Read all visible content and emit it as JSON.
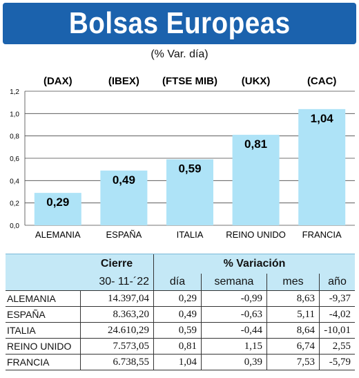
{
  "title": "Bolsas Europeas",
  "subtitle": "(% Var. día)",
  "chart_data": {
    "type": "bar",
    "categories": [
      "ALEMANIA",
      "ESPAÑA",
      "ITALIA",
      "REINO UNIDO",
      "FRANCIA"
    ],
    "indices": [
      "(DAX)",
      "(IBEX)",
      "(FTSE MIB)",
      "(UKX)",
      "(CAC)"
    ],
    "values": [
      0.29,
      0.49,
      0.59,
      0.81,
      1.04
    ],
    "value_labels": [
      "0,29",
      "0,49",
      "0,59",
      "0,81",
      "1,04"
    ],
    "ylim": [
      0,
      1.2
    ],
    "yticks": [
      "0,0",
      "0,2",
      "0,4",
      "0,6",
      "0,8",
      "1,0",
      "1,2"
    ],
    "bar_color": "#aee3f7",
    "grid": true
  },
  "table": {
    "group_cierre": "Cierre",
    "group_variacion": "% Variación",
    "date": "30- 11-´22",
    "col_dia": "día",
    "col_semana": "semana",
    "col_mes": "mes",
    "col_ano": "año",
    "rows": [
      {
        "country": "ALEMANIA",
        "close": "14.397,04",
        "dia": "0,29",
        "semana": "-0,99",
        "mes": "8,63",
        "ano": "-9,37"
      },
      {
        "country": "ESPAÑA",
        "close": "8.363,20",
        "dia": "0,49",
        "semana": "-0,63",
        "mes": "5,11",
        "ano": "-4,02"
      },
      {
        "country": "ITALIA",
        "close": "24.610,29",
        "dia": "0,59",
        "semana": "-0,44",
        "mes": "8,64",
        "ano": "-10,01"
      },
      {
        "country": "REINO UNIDO",
        "close": "7.573,05",
        "dia": "0,81",
        "semana": "1,15",
        "mes": "6,74",
        "ano": "2,55"
      },
      {
        "country": "FRANCIA",
        "close": "6.738,55",
        "dia": "1,04",
        "semana": "0,39",
        "mes": "7,53",
        "ano": "-5,79"
      }
    ]
  }
}
